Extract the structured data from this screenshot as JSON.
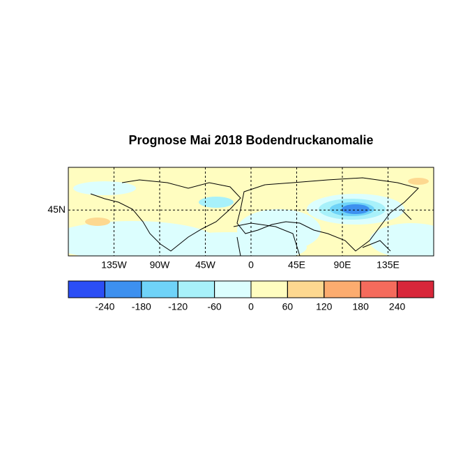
{
  "title": "Prognose Mai 2018 Bodendruckanomalie",
  "map": {
    "xlim": [
      -180,
      180
    ],
    "ylim": [
      0,
      87
    ],
    "xticks": [
      {
        "value": -135,
        "label": "135W"
      },
      {
        "value": -90,
        "label": "90W"
      },
      {
        "value": -45,
        "label": "45W"
      },
      0,
      {
        "value": 45,
        "label": "45E"
      },
      {
        "value": 90,
        "label": "90E"
      },
      {
        "value": 135,
        "label": "135E"
      }
    ],
    "yticks": [
      {
        "value": 45,
        "label": "45N"
      }
    ],
    "grid": true
  },
  "colorbar": {
    "levels": [
      -240,
      -180,
      -120,
      -60,
      0,
      60,
      120,
      180,
      240
    ],
    "colors": [
      "#2b4ef5",
      "#3d90ef",
      "#6fd3f8",
      "#a8f1fa",
      "#dcfefe",
      "#fffdc0",
      "#fdd890",
      "#fcac6f",
      "#f56b5c",
      "#d8273a"
    ]
  }
}
